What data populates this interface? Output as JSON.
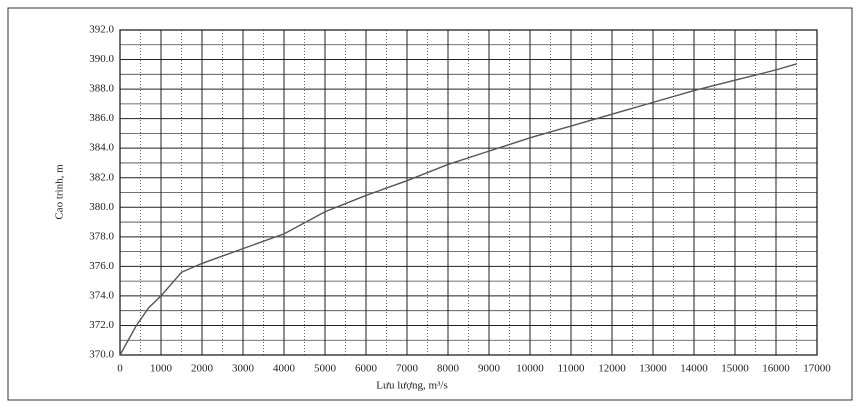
{
  "chart_data": {
    "type": "line",
    "x_label": "Lưu lượng, m³/s",
    "y_label": "Cao trình, m",
    "x": [
      0,
      200,
      400,
      700,
      1000,
      1500,
      2000,
      3000,
      4000,
      5000,
      6000,
      7000,
      8000,
      9000,
      10000,
      11000,
      12000,
      13000,
      14000,
      15000,
      16000,
      16500
    ],
    "series": [
      {
        "color": "#555555",
        "values": [
          370.0,
          371.0,
          372.0,
          373.2,
          374.0,
          375.6,
          376.2,
          377.2,
          378.2,
          379.7,
          380.8,
          381.8,
          382.9,
          383.8,
          384.7,
          385.5,
          386.3,
          387.1,
          387.9,
          388.6,
          389.3,
          389.7
        ]
      }
    ],
    "xlim": [
      0,
      17000
    ],
    "ylim": [
      370,
      392
    ],
    "xticks": [
      0,
      1000,
      2000,
      3000,
      4000,
      5000,
      6000,
      7000,
      8000,
      9000,
      10000,
      11000,
      12000,
      13000,
      14000,
      15000,
      16000,
      17000
    ],
    "yticks": [
      {
        "value": 370,
        "label": "370.0"
      },
      {
        "value": 372,
        "label": "372.0"
      },
      {
        "value": 374,
        "label": "374.0"
      },
      {
        "value": 376,
        "label": "376.0"
      },
      {
        "value": 378,
        "label": "378.0"
      },
      {
        "value": 380,
        "label": "380.0"
      },
      {
        "value": 382,
        "label": "382.0"
      },
      {
        "value": 384,
        "label": "384.0"
      },
      {
        "value": 386,
        "label": "386.0"
      },
      {
        "value": 388,
        "label": "388.0"
      },
      {
        "value": 390,
        "label": "390.0"
      },
      {
        "value": 392,
        "label": "392.0"
      }
    ],
    "grid": true
  }
}
